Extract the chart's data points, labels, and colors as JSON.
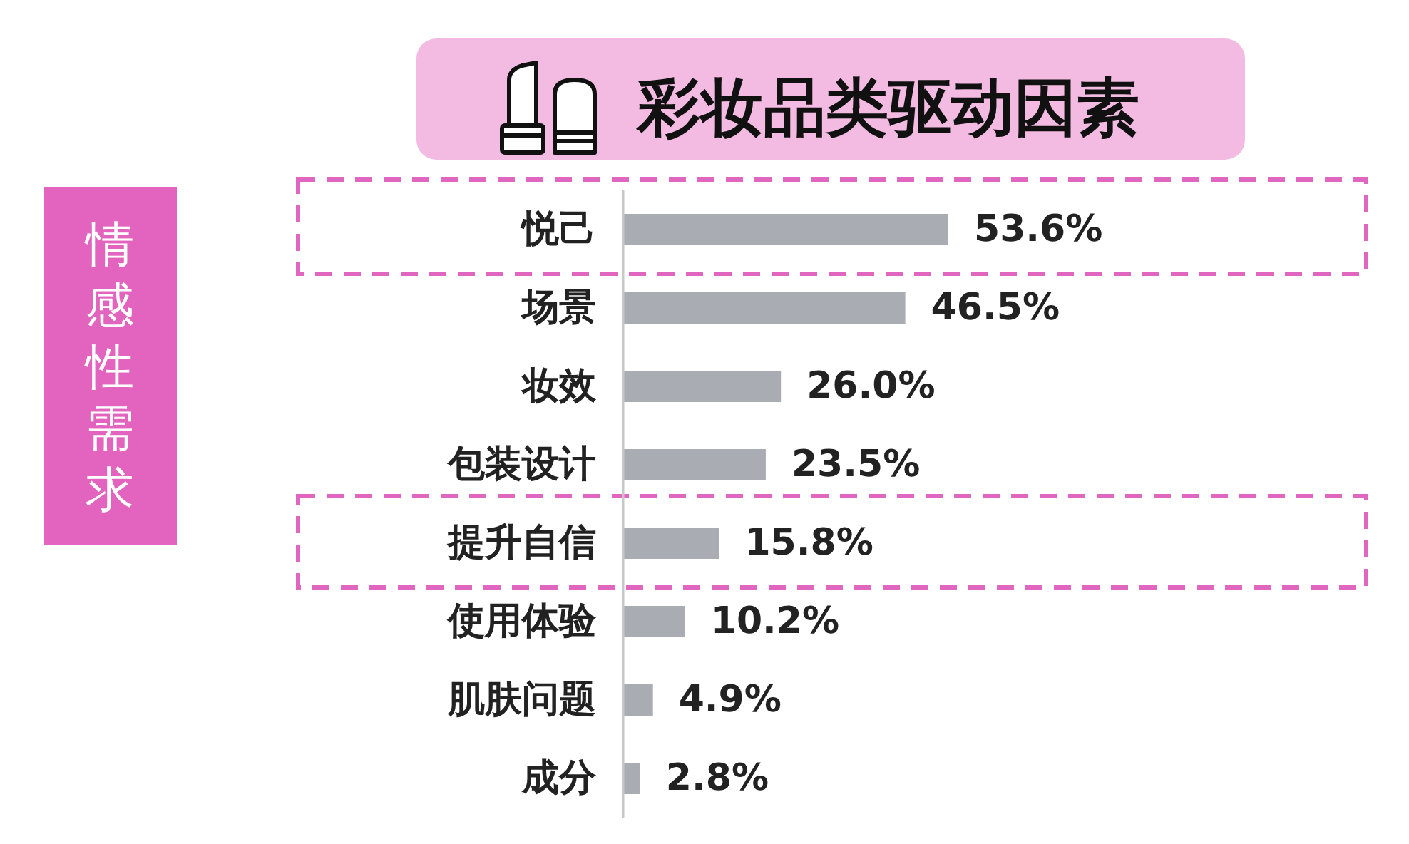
{
  "chart_data": {
    "type": "bar",
    "orientation": "horizontal",
    "title": "彩妆品类驱动因素",
    "categories": [
      "悦己",
      "场景",
      "妆效",
      "包装设计",
      "提升自信",
      "使用体验",
      "肌肤问题",
      "成分"
    ],
    "values": [
      53.6,
      46.5,
      26.0,
      23.5,
      15.8,
      10.2,
      4.9,
      2.8
    ],
    "value_labels": [
      "53.6%",
      "46.5%",
      "26.0%",
      "23.5%",
      "15.8%",
      "10.2%",
      "4.9%",
      "2.8%"
    ],
    "color": "#a9acb3",
    "annotations": [
      "情感性需求"
    ]
  }
}
